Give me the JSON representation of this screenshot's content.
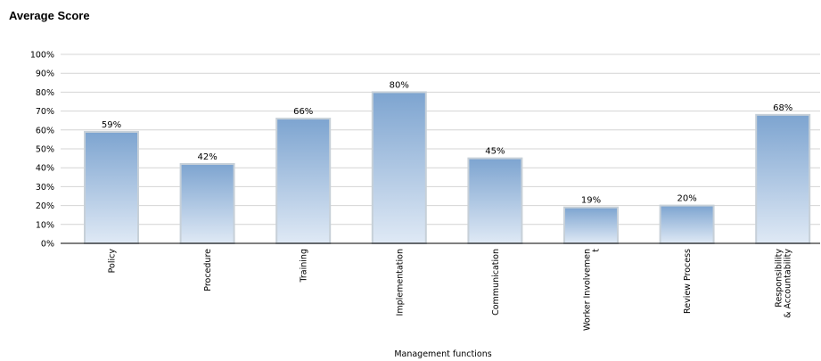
{
  "page": {
    "title": "Average Score"
  },
  "chart_data": {
    "type": "bar",
    "title": "Average Score",
    "xlabel": "Management functions",
    "ylabel": "",
    "ylim": [
      0,
      100
    ],
    "yticks": [
      0,
      10,
      20,
      30,
      40,
      50,
      60,
      70,
      80,
      90,
      100
    ],
    "ytick_suffix": "%",
    "grid": true,
    "categories": [
      [
        "Policy"
      ],
      [
        "Procedure"
      ],
      [
        "Training"
      ],
      [
        "Implementation"
      ],
      [
        "Communication"
      ],
      [
        "Worker Involvemen",
        "t"
      ],
      [
        "Review Process"
      ],
      [
        "Responsibility",
        "& Accountability"
      ]
    ],
    "values": [
      59,
      42,
      66,
      80,
      45,
      19,
      20,
      68
    ],
    "data_labels": [
      "59%",
      "42%",
      "66%",
      "80%",
      "45%",
      "19%",
      "20%",
      "68%"
    ],
    "colors": {
      "bar_top": "#7da4d0",
      "bar_bottom": "#dfe9f5",
      "bar_edge": "#c7d0d8",
      "grid": "#d4d4d4",
      "axis": "#000000"
    }
  }
}
